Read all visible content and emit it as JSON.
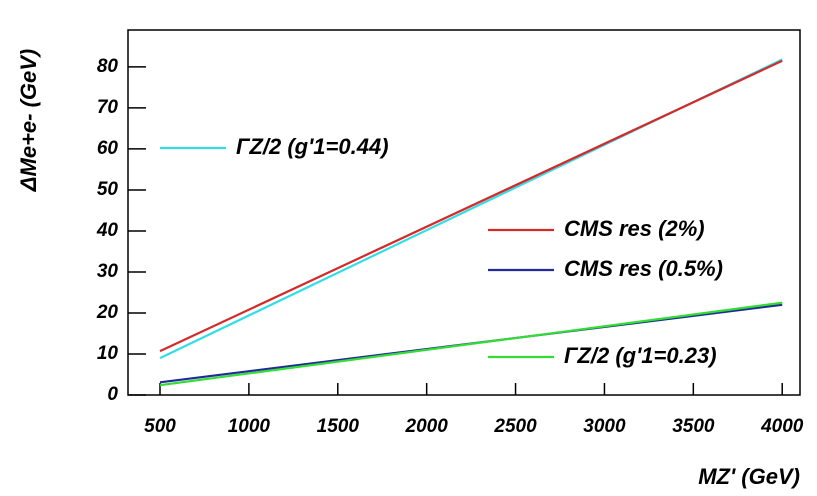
{
  "chart_data": {
    "type": "line",
    "x_label": "MZ' (GeV)",
    "y_label": "ΔMe+e- (GeV)",
    "x": [
      500,
      4000
    ],
    "series": [
      {
        "name": "ΓZ/2 (g'1=0.44)",
        "color": "#33dde6",
        "values": [
          9.0,
          81.8
        ]
      },
      {
        "name": "CMS res (2%)",
        "color": "#d42a2a",
        "values": [
          10.7,
          81.5
        ]
      },
      {
        "name": "CMS res (0.5%)",
        "color": "#202a9a",
        "values": [
          3.1,
          22.0
        ]
      },
      {
        "name": "ΓZ/2 (g'1=0.23)",
        "color": "#33dd33",
        "values": [
          2.4,
          22.5
        ]
      }
    ],
    "xlim": [
      320,
      4100
    ],
    "ylim": [
      0,
      89
    ],
    "xticks": [
      500,
      1000,
      1500,
      2000,
      2500,
      3000,
      3500,
      4000
    ],
    "yticks": [
      0,
      10,
      20,
      30,
      40,
      50,
      60,
      70,
      80
    ]
  }
}
